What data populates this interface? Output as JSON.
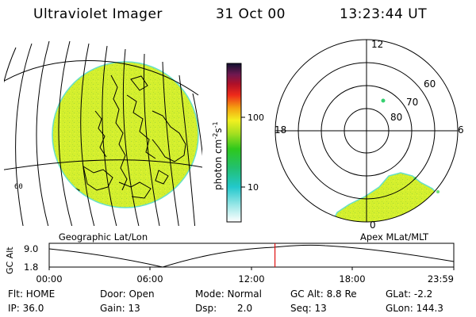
{
  "header": {
    "instrument": "Ultraviolet Imager",
    "date": "31 Oct 00",
    "time": "13:23:44 UT"
  },
  "colorbar": {
    "label": "photon cm",
    "label_sup1": "-2",
    "label_s": "s",
    "label_sup2": "-1",
    "tick_high": "100",
    "tick_low": "10"
  },
  "geo_panel": {
    "caption": "Geographic Lat/Lon",
    "corner_label": "60"
  },
  "polar_panel": {
    "caption": "Apex MLat/MLT",
    "mlt_top": "12",
    "mlt_left": "18",
    "mlt_right": "6",
    "mlt_bottom": "0",
    "ring_60": "60",
    "ring_70": "70",
    "ring_80": "80"
  },
  "altitude_plot": {
    "ylabel": "GC Alt",
    "y_high": "9.0",
    "y_low": "1.8",
    "x_ticks": [
      "00:00",
      "06:00",
      "12:00",
      "18:00",
      "23:59"
    ],
    "current_time_fraction": 0.558
  },
  "info": {
    "flt": "Flt: HOME",
    "ip": "IP: 36.0",
    "door": "Door: Open",
    "gain": "Gain: 13",
    "mode": "Mode: Normal",
    "dsp_label": "Dsp:",
    "dsp_value": "2.0",
    "gcalt": "GC Alt: 8.8 Re",
    "seq": "Seq: 13",
    "glat": "GLat: -2.2",
    "glon": "GLon: 144.3"
  },
  "colors": {
    "image_fill": "#d4ef2e",
    "image_edge": "#66e0c8",
    "current_time_line": "#e01010"
  }
}
